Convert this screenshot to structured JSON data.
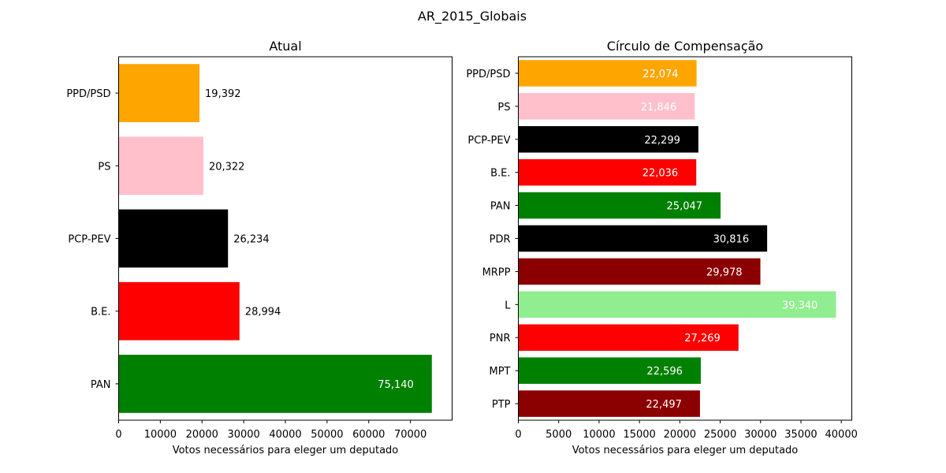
{
  "figure": {
    "title": "AR_2015_Globais"
  },
  "chart_data": [
    {
      "type": "bar",
      "orientation": "horizontal",
      "title": "Atual",
      "xlabel": "Votos necessários para eleger um deputado",
      "ylabel": "",
      "xlim": [
        0,
        80000
      ],
      "xticks": [
        0,
        10000,
        20000,
        30000,
        40000,
        50000,
        60000,
        70000
      ],
      "categories": [
        "PPD/PSD",
        "PS",
        "PCP-PEV",
        "B.E.",
        "PAN"
      ],
      "values": [
        19392,
        20322,
        26234,
        28994,
        75140
      ],
      "data_labels": [
        "19,392",
        "20,322",
        "26,234",
        "28,994",
        "75,140"
      ],
      "colors": [
        "#ffa500",
        "#ffc0cb",
        "#000000",
        "#ff0000",
        "#008000"
      ],
      "grid": false,
      "legend": "none"
    },
    {
      "type": "bar",
      "orientation": "horizontal",
      "title": "Círculo de Compensação",
      "xlabel": "Votos necessários para eleger um deputado",
      "ylabel": "",
      "xlim": [
        0,
        41300
      ],
      "xticks": [
        0,
        5000,
        10000,
        15000,
        20000,
        25000,
        30000,
        35000,
        40000
      ],
      "categories": [
        "PPD/PSD",
        "PS",
        "PCP-PEV",
        "B.E.",
        "PAN",
        "PDR",
        "MRPP",
        "L",
        "PNR",
        "MPT",
        "PTP"
      ],
      "values": [
        22074,
        21846,
        22299,
        22036,
        25047,
        30816,
        29978,
        39340,
        27269,
        22596,
        22497
      ],
      "data_labels": [
        "22,074",
        "21,846",
        "22,299",
        "22,036",
        "25,047",
        "30,816",
        "29,978",
        "39,340",
        "27,269",
        "22,596",
        "22,497"
      ],
      "colors": [
        "#ffa500",
        "#ffc0cb",
        "#000000",
        "#ff0000",
        "#008000",
        "#000000",
        "#8b0000",
        "#90ee90",
        "#ff0000",
        "#008000",
        "#8b0000"
      ],
      "grid": false,
      "legend": "none"
    }
  ]
}
